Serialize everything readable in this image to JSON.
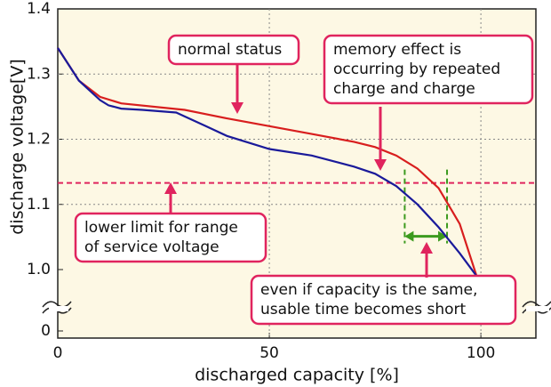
{
  "chart_data": {
    "type": "line",
    "x_label": "discharged capacity [%]",
    "y_label": "discharge voltage[V]",
    "xlim": [
      0,
      113
    ],
    "ylim": [
      0,
      1.4
    ],
    "xticks": [
      0,
      50,
      100
    ],
    "yticks": [
      0,
      {
        "value": 1,
        "label": "1.0"
      },
      1.1,
      1.2,
      1.3,
      1.4
    ],
    "grid": true,
    "series": [
      {
        "color": "#d81e1e",
        "x": [
          0,
          5,
          10,
          15,
          30,
          40,
          50,
          60,
          70,
          75,
          80,
          85,
          90,
          95,
          99
        ],
        "values": [
          1.34,
          1.29,
          1.265,
          1.255,
          1.245,
          1.232,
          1.22,
          1.208,
          1.196,
          1.188,
          1.175,
          1.155,
          1.125,
          1.07,
          0.99
        ]
      },
      {
        "color": "#1a1a9a",
        "x": [
          0,
          5,
          10,
          12,
          15,
          20,
          28,
          30,
          35,
          40,
          50,
          60,
          70,
          75,
          80,
          85,
          90,
          95,
          99
        ],
        "values": [
          1.34,
          1.29,
          1.26,
          1.252,
          1.247,
          1.245,
          1.241,
          1.235,
          1.22,
          1.205,
          1.185,
          1.175,
          1.158,
          1.147,
          1.128,
          1.1,
          1.065,
          1.025,
          0.99
        ]
      }
    ],
    "reference_line": {
      "value": 1.133,
      "color": "#e0245e"
    },
    "interval": {
      "x": [
        82,
        92
      ],
      "color": "#3c9a1e"
    },
    "annotations": [
      {
        "lines": [
          "normal status"
        ]
      },
      {
        "lines": [
          "memory effect is",
          "occurring by repeated",
          "charge and charge"
        ]
      },
      {
        "lines": [
          "lower limit for range",
          "of service voltage"
        ]
      },
      {
        "lines": [
          "even if capacity is the same,",
          "usable time becomes short"
        ]
      }
    ]
  }
}
